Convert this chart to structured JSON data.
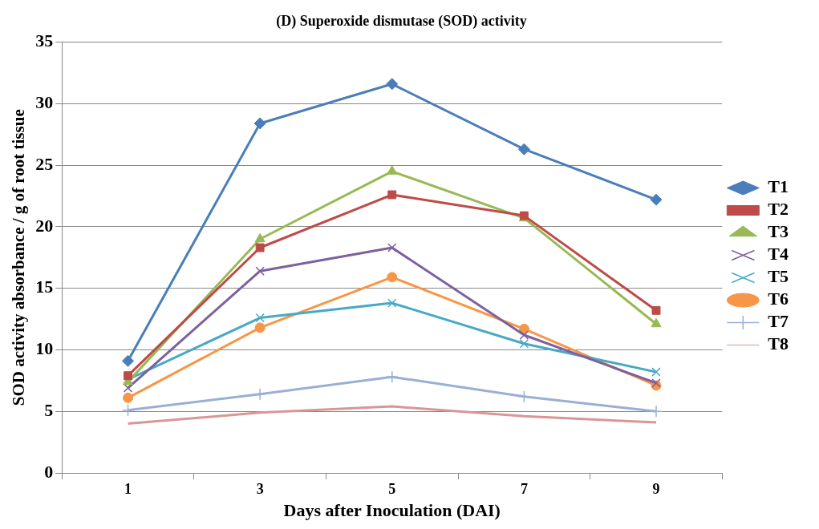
{
  "chart_data": {
    "type": "line",
    "title": "(D) Superoxide dismutase (SOD) activity",
    "xlabel": "Days after Inoculation (DAI)",
    "ylabel": "SOD activity absorbance / g of root tissue",
    "categories": [
      "1",
      "3",
      "5",
      "7",
      "9"
    ],
    "ylim": [
      0,
      35
    ],
    "yticks": [
      0,
      5,
      10,
      15,
      20,
      25,
      30,
      35
    ],
    "grid": "y",
    "legend": "right",
    "series": [
      {
        "name": "T1",
        "color": "#4a7ebb",
        "marker": "diamond",
        "values": [
          9.1,
          28.4,
          31.6,
          26.3,
          22.2
        ]
      },
      {
        "name": "T2",
        "color": "#be4b48",
        "marker": "square",
        "values": [
          7.9,
          18.3,
          22.6,
          20.9,
          13.2
        ]
      },
      {
        "name": "T3",
        "color": "#98b954",
        "marker": "triangle",
        "values": [
          7.4,
          19.0,
          24.5,
          20.7,
          12.1
        ]
      },
      {
        "name": "T4",
        "color": "#7d60a0",
        "marker": "cross",
        "values": [
          6.9,
          16.4,
          18.3,
          11.2,
          7.3
        ]
      },
      {
        "name": "T5",
        "color": "#46aac5",
        "marker": "cross",
        "values": [
          7.6,
          12.6,
          13.8,
          10.5,
          8.2
        ]
      },
      {
        "name": "T6",
        "color": "#f79646",
        "marker": "circle",
        "values": [
          6.1,
          11.8,
          15.9,
          11.7,
          7.1
        ]
      },
      {
        "name": "T7",
        "color": "#9aafd4",
        "marker": "plus",
        "values": [
          5.1,
          6.4,
          7.8,
          6.2,
          5.0
        ]
      },
      {
        "name": "T8",
        "color": "#d99694",
        "marker": "none",
        "values": [
          4.0,
          4.9,
          5.4,
          4.6,
          4.1
        ]
      }
    ]
  }
}
